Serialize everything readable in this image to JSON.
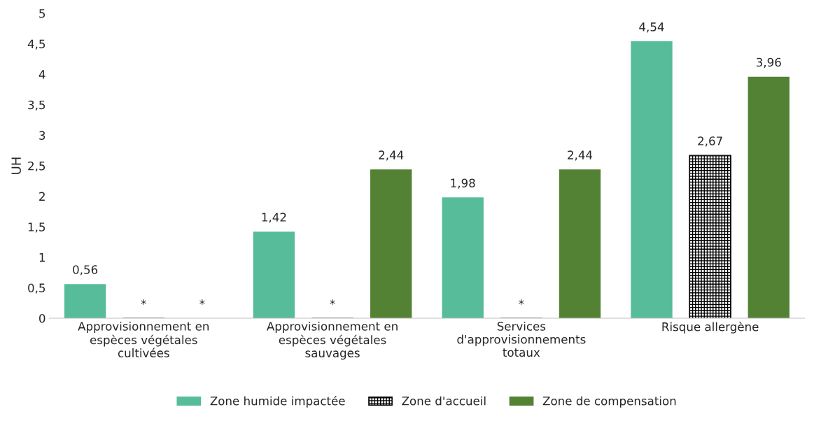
{
  "chart_data": {
    "type": "bar",
    "ylabel": "UH",
    "categories": [
      "Approvisionnement en\nespèces végétales\ncultivées",
      "Approvisionnement en\nespèces végétales\nsauvages",
      "Services\nd'approvisionnements\ntotaux",
      "Risque allergène"
    ],
    "series": [
      {
        "name": "Zone humide impactée",
        "color": "#56bc99",
        "values": [
          0.56,
          1.42,
          1.98,
          4.54
        ],
        "value_labels": [
          "0,56",
          "1,42",
          "1,98",
          "4,54"
        ]
      },
      {
        "name": "Zone d'accueil",
        "color": "#000000",
        "values": [
          null,
          null,
          null,
          2.67
        ],
        "value_labels": [
          "*",
          "*",
          "*",
          "2,67"
        ]
      },
      {
        "name": "Zone de compensation",
        "color": "#548235",
        "values": [
          null,
          2.44,
          2.44,
          3.96
        ],
        "value_labels": [
          "*",
          "2,44",
          "2,44",
          "3,96"
        ]
      }
    ],
    "ylim": [
      0,
      5
    ],
    "yticks": [
      0,
      {
        "value": 0.5,
        "label": "0,5"
      },
      1,
      {
        "value": 1.5,
        "label": "1,5"
      },
      2,
      {
        "value": 2.5,
        "label": "2,5"
      },
      3,
      {
        "value": 3.5,
        "label": "3,5"
      },
      4,
      {
        "value": 4.5,
        "label": "4,5"
      },
      5
    ],
    "grid": false,
    "legend": "bottom"
  }
}
